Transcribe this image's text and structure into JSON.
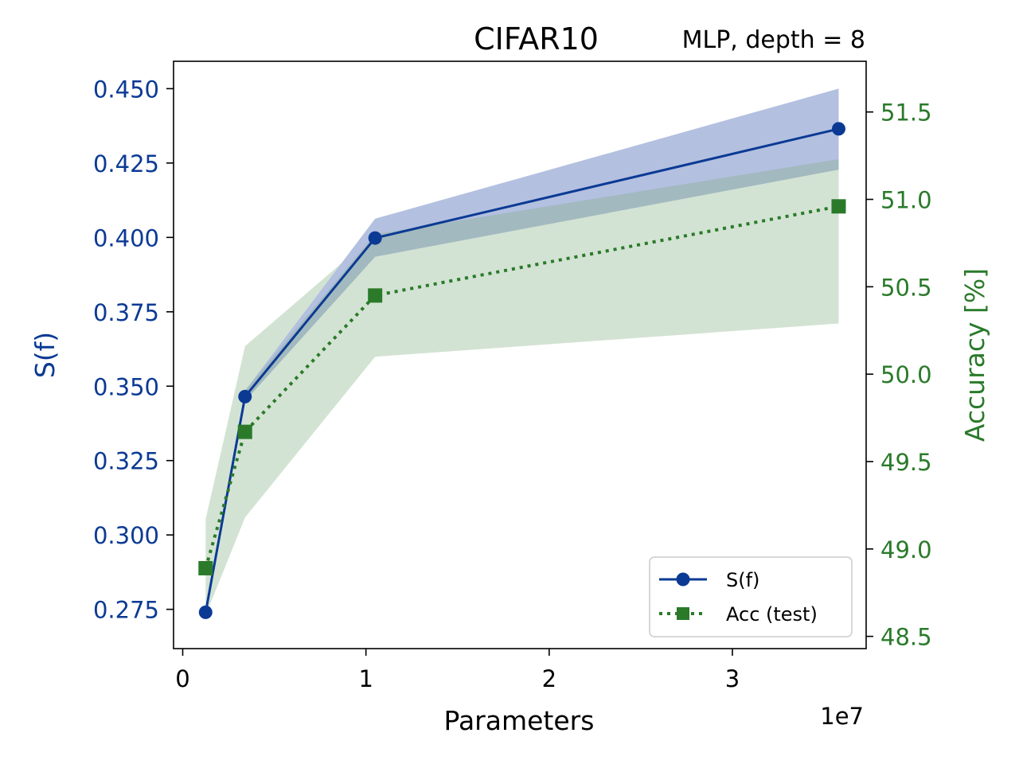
{
  "chart_data": {
    "type": "line",
    "title": "CIFAR10",
    "subtitle": "MLP, depth = 8",
    "xlabel": "Parameters",
    "x_offset_label": "1e7",
    "ylabel_left": "S(f)",
    "ylabel_right": "Accuracy [%]",
    "xlim": [
      -0.05,
      3.73
    ],
    "ylim_left": [
      0.2618,
      0.4592
    ],
    "ylim_right": [
      48.43,
      51.79
    ],
    "x_ticks": [
      0,
      1,
      2,
      3
    ],
    "x_tick_labels": [
      "0",
      "1",
      "2",
      "3"
    ],
    "y_left_ticks": [
      0.275,
      0.3,
      0.325,
      0.35,
      0.375,
      0.4,
      0.425,
      0.45
    ],
    "y_left_tick_labels": [
      "0.275",
      "0.300",
      "0.325",
      "0.350",
      "0.375",
      "0.400",
      "0.425",
      "0.450"
    ],
    "y_right_ticks": [
      48.5,
      49.0,
      49.5,
      50.0,
      50.5,
      51.0,
      51.5
    ],
    "y_right_tick_labels": [
      "48.5",
      "49.0",
      "49.5",
      "50.0",
      "50.5",
      "51.0",
      "51.5"
    ],
    "x": [
      0.125,
      0.34,
      1.05,
      3.58
    ],
    "series": [
      {
        "name": "S(f)",
        "axis": "left",
        "values": [
          0.274,
          0.3465,
          0.3998,
          0.4365
        ],
        "band_lower": [
          0.2725,
          0.345,
          0.3935,
          0.4228
        ],
        "band_upper": [
          0.2755,
          0.3485,
          0.4063,
          0.45
        ],
        "color": "#0b3a94",
        "band_color": "#b3c0e0",
        "marker": "circle",
        "linestyle": "solid"
      },
      {
        "name": "Acc (test)",
        "axis": "right",
        "values": [
          48.89,
          49.67,
          50.45,
          50.96
        ],
        "band_lower": [
          48.62,
          49.18,
          50.1,
          50.29
        ],
        "band_upper": [
          49.17,
          50.16,
          50.8,
          51.23
        ],
        "color": "#2a7a2a",
        "band_color": "#d3e3d3",
        "marker": "square",
        "linestyle": "dotted"
      }
    ],
    "overlap_color": "#a2b9bf",
    "legend_position": "lower-right"
  }
}
